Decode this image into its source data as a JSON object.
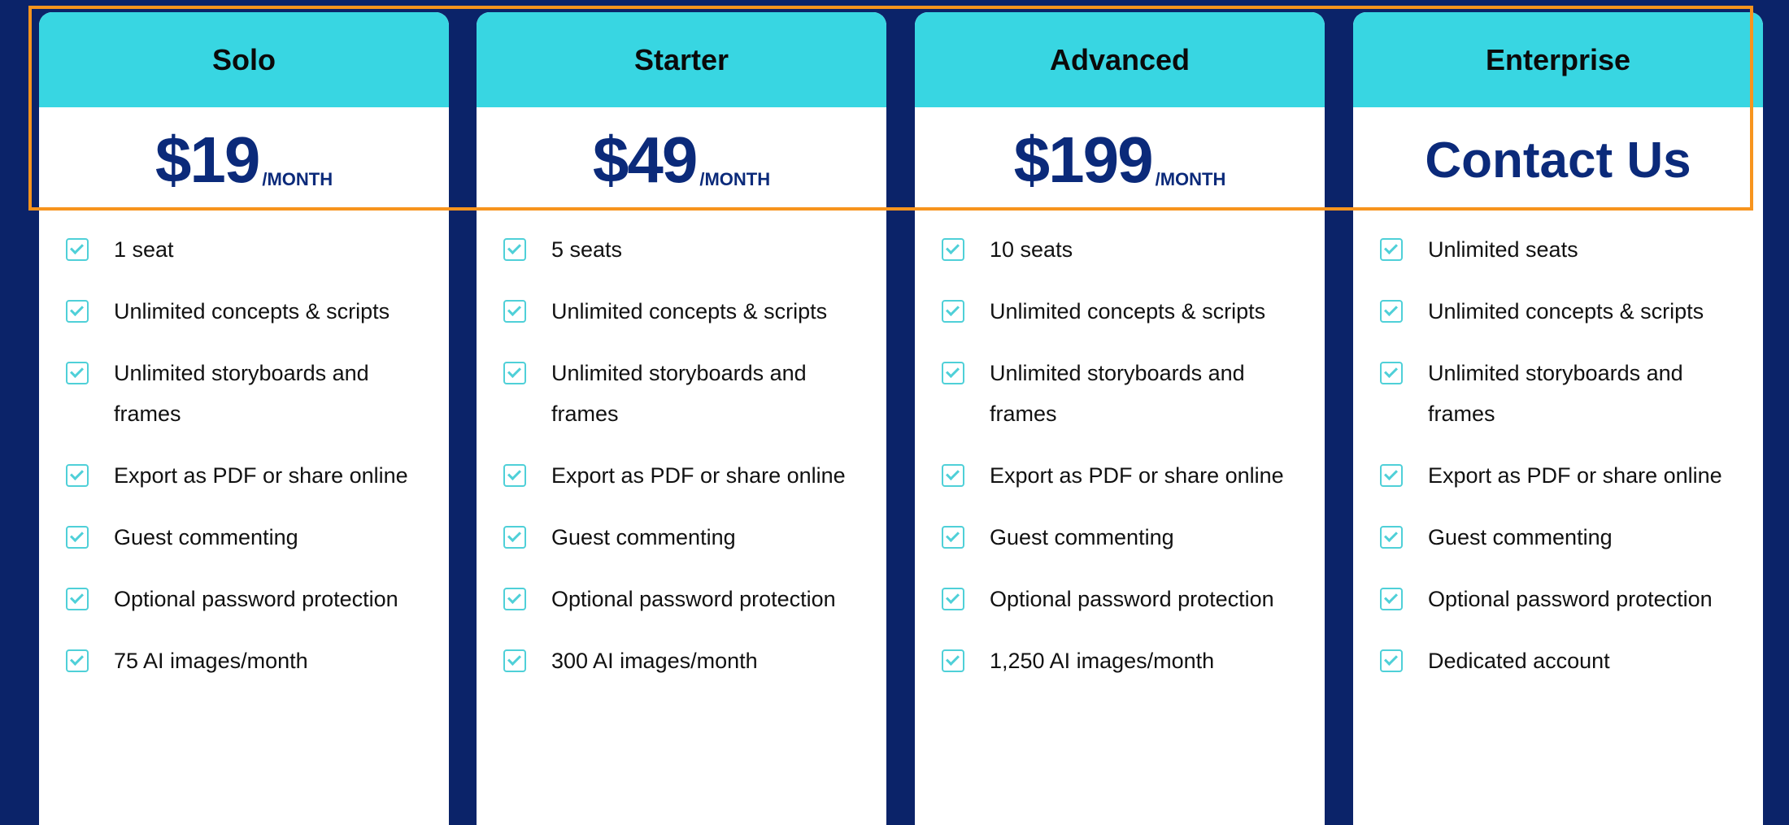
{
  "colors": {
    "background": "#0b2369",
    "header": "#38d6e2",
    "price": "#0b2a7a",
    "check": "#4fd0d8",
    "highlight": "#f7941d"
  },
  "plans": [
    {
      "name": "Solo",
      "price": "$19",
      "period": "/MONTH",
      "features": [
        "1 seat",
        "Unlimited concepts & scripts",
        "Unlimited storyboards and frames",
        "Export as PDF or share online",
        "Guest commenting",
        "Optional password protection",
        "75 AI images/month"
      ]
    },
    {
      "name": "Starter",
      "price": "$49",
      "period": "/MONTH",
      "features": [
        "5 seats",
        "Unlimited concepts & scripts",
        "Unlimited storyboards and frames",
        "Export as PDF or share online",
        "Guest commenting",
        "Optional password protection",
        "300 AI images/month"
      ]
    },
    {
      "name": "Advanced",
      "price": "$199",
      "period": "/MONTH",
      "features": [
        "10 seats",
        "Unlimited concepts & scripts",
        "Unlimited storyboards and frames",
        "Export as PDF or share online",
        "Guest commenting",
        "Optional password protection",
        "1,250 AI images/month"
      ]
    },
    {
      "name": "Enterprise",
      "price": "Contact Us",
      "period": "",
      "features": [
        "Unlimited seats",
        "Unlimited concepts & scripts",
        "Unlimited storyboards and frames",
        "Export as PDF or share online",
        "Guest commenting",
        "Optional password protection",
        "Dedicated account"
      ]
    }
  ]
}
